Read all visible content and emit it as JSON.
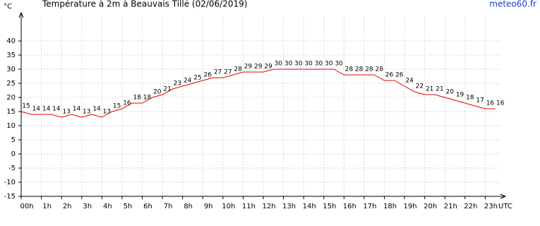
{
  "chart_data": {
    "type": "line",
    "title": "Température à 2m à Beauvais Tillé (02/06/2019)",
    "y_label": "°C",
    "x_label": "UTC",
    "source": "meteo60.fr",
    "x": [
      0,
      0.5,
      1,
      1.5,
      2,
      2.5,
      3,
      3.5,
      4,
      4.5,
      5,
      5.5,
      6,
      6.5,
      7,
      7.5,
      8,
      8.5,
      9,
      9.5,
      10,
      10.5,
      11,
      11.5,
      12,
      12.5,
      13,
      13.5,
      14,
      14.5,
      15,
      15.5,
      16,
      16.5,
      17,
      17.5,
      18,
      18.5,
      19,
      19.5,
      20,
      20.5,
      21,
      21.5,
      22,
      22.5,
      23,
      23.5
    ],
    "series": [
      {
        "name": "Température",
        "color": "#e00000",
        "values": [
          15,
          14,
          14,
          14,
          13,
          14,
          13,
          14,
          13,
          15,
          16,
          18,
          18,
          20,
          21,
          23,
          24,
          25,
          26,
          27,
          27,
          28,
          29,
          29,
          29,
          30,
          30,
          30,
          30,
          30,
          30,
          30,
          28,
          28,
          28,
          28,
          26,
          26,
          24,
          22,
          21,
          21,
          20,
          19,
          18,
          17,
          16,
          16
        ]
      }
    ],
    "xlim": [
      0,
      24
    ],
    "ylim": [
      -15,
      50
    ],
    "xticks": [
      {
        "value": 0,
        "label": "00h"
      },
      {
        "value": 1,
        "label": "1h"
      },
      {
        "value": 2,
        "label": "2h"
      },
      {
        "value": 3,
        "label": "3h"
      },
      {
        "value": 4,
        "label": "4h"
      },
      {
        "value": 5,
        "label": "5h"
      },
      {
        "value": 6,
        "label": "6h"
      },
      {
        "value": 7,
        "label": "7h"
      },
      {
        "value": 8,
        "label": "8h"
      },
      {
        "value": 9,
        "label": "9h"
      },
      {
        "value": 10,
        "label": "10h"
      },
      {
        "value": 11,
        "label": "11h"
      },
      {
        "value": 12,
        "label": "12h"
      },
      {
        "value": 13,
        "label": "13h"
      },
      {
        "value": 14,
        "label": "14h"
      },
      {
        "value": 15,
        "label": "15h"
      },
      {
        "value": 16,
        "label": "16h"
      },
      {
        "value": 17,
        "label": "17h"
      },
      {
        "value": 18,
        "label": "18h"
      },
      {
        "value": 19,
        "label": "19h"
      },
      {
        "value": 20,
        "label": "20h"
      },
      {
        "value": 21,
        "label": "21h"
      },
      {
        "value": 22,
        "label": "22h"
      },
      {
        "value": 23,
        "label": "23h"
      }
    ],
    "yticks": [
      -15,
      -10,
      -5,
      0,
      5,
      10,
      15,
      20,
      25,
      30,
      35,
      40
    ],
    "grid": true
  }
}
